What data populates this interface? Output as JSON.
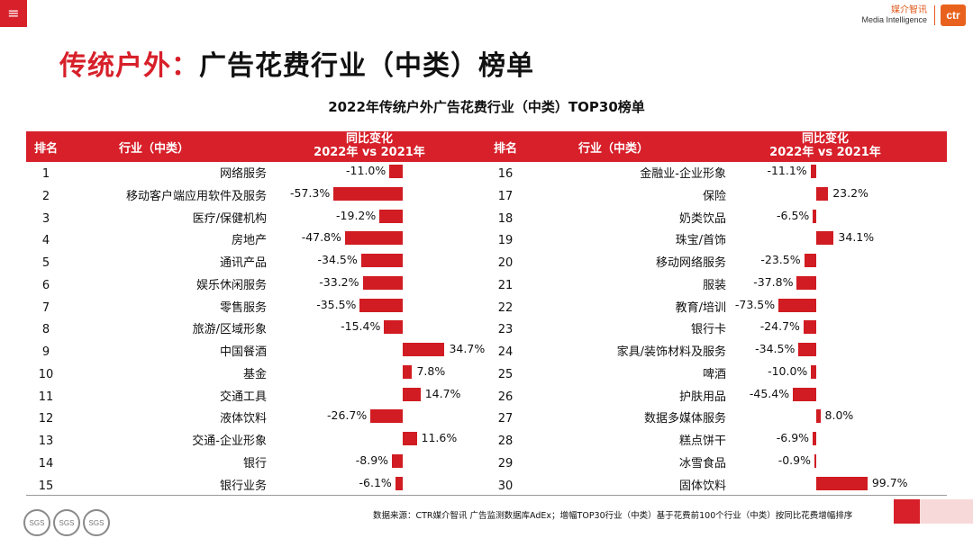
{
  "header": {
    "menu_icon": "≡",
    "logo_cn": "媒介智讯",
    "logo_en": "Media Intelligence",
    "logo_mark": "ctr"
  },
  "page_title": {
    "part1": "传统户外：",
    "part2": "广告花费行业（中类）榜单"
  },
  "columns": {
    "rank": "排名",
    "industry": "行业（中类）",
    "change_line1": "同比变化",
    "change_line2": "2022年 vs 2021年"
  },
  "footer": {
    "source": "数据来源：CTR媒介智讯 广告监测数据库AdEx；增幅TOP30行业（中类）基于花费前100个行业（中类）按同比花费增幅排序",
    "badges": [
      "SGS",
      "SGS",
      "SGS"
    ]
  },
  "colors": {
    "accent": "#d7202a",
    "bar": "#d01c22"
  },
  "chart_data": {
    "type": "bar",
    "orientation": "horizontal",
    "title": "2022年传统户外广告花费行业（中类）TOP30榜单",
    "xlabel": "同比变化 2022年 vs 2021年",
    "unit": "%",
    "left_table": [
      {
        "rank": "1",
        "name": "网络服务",
        "value": -11.0,
        "label": "-11.0%"
      },
      {
        "rank": "2",
        "name": "移动客户端应用软件及服务",
        "value": -57.3,
        "label": "-57.3%"
      },
      {
        "rank": "3",
        "name": "医疗/保健机构",
        "value": -19.2,
        "label": "-19.2%"
      },
      {
        "rank": "4",
        "name": "房地产",
        "value": -47.8,
        "label": "-47.8%"
      },
      {
        "rank": "5",
        "name": "通讯产品",
        "value": -34.5,
        "label": "-34.5%"
      },
      {
        "rank": "6",
        "name": "娱乐休闲服务",
        "value": -33.2,
        "label": "-33.2%"
      },
      {
        "rank": "7",
        "name": "零售服务",
        "value": -35.5,
        "label": "-35.5%"
      },
      {
        "rank": "8",
        "name": "旅游/区域形象",
        "value": -15.4,
        "label": "-15.4%"
      },
      {
        "rank": "9",
        "name": "中国餐酒",
        "value": 34.7,
        "label": "34.7%"
      },
      {
        "rank": "10",
        "name": "基金",
        "value": 7.8,
        "label": "7.8%"
      },
      {
        "rank": "11",
        "name": "交通工具",
        "value": 14.7,
        "label": "14.7%"
      },
      {
        "rank": "12",
        "name": "液体饮料",
        "value": -26.7,
        "label": "-26.7%"
      },
      {
        "rank": "13",
        "name": "交通-企业形象",
        "value": 11.6,
        "label": "11.6%"
      },
      {
        "rank": "14",
        "name": "银行",
        "value": -8.9,
        "label": "-8.9%"
      },
      {
        "rank": "15",
        "name": "银行业务",
        "value": -6.1,
        "label": "-6.1%"
      }
    ],
    "right_table": [
      {
        "rank": "16",
        "name": "金融业-企业形象",
        "value": -11.1,
        "label": "-11.1%"
      },
      {
        "rank": "17",
        "name": "保险",
        "value": 23.2,
        "label": "23.2%"
      },
      {
        "rank": "18",
        "name": "奶类饮品",
        "value": -6.5,
        "label": "-6.5%"
      },
      {
        "rank": "19",
        "name": "珠宝/首饰",
        "value": 34.1,
        "label": "34.1%"
      },
      {
        "rank": "20",
        "name": "移动网络服务",
        "value": -23.5,
        "label": "-23.5%"
      },
      {
        "rank": "21",
        "name": "服装",
        "value": -37.8,
        "label": "-37.8%"
      },
      {
        "rank": "22",
        "name": "教育/培训",
        "value": -73.5,
        "label": "-73.5%"
      },
      {
        "rank": "23",
        "name": "银行卡",
        "value": -24.7,
        "label": "-24.7%"
      },
      {
        "rank": "24",
        "name": "家具/装饰材料及服务",
        "value": -34.5,
        "label": "-34.5%"
      },
      {
        "rank": "25",
        "name": "啤酒",
        "value": -10.0,
        "label": "-10.0%"
      },
      {
        "rank": "26",
        "name": "护肤用品",
        "value": -45.4,
        "label": "-45.4%"
      },
      {
        "rank": "27",
        "name": "数据多媒体服务",
        "value": 8.0,
        "label": "8.0%"
      },
      {
        "rank": "28",
        "name": "糕点饼干",
        "value": -6.9,
        "label": "-6.9%"
      },
      {
        "rank": "29",
        "name": "冰雪食品",
        "value": -0.9,
        "label": "-0.9%"
      },
      {
        "rank": "30",
        "name": "固体饮料",
        "value": 99.7,
        "label": "99.7%"
      }
    ]
  }
}
